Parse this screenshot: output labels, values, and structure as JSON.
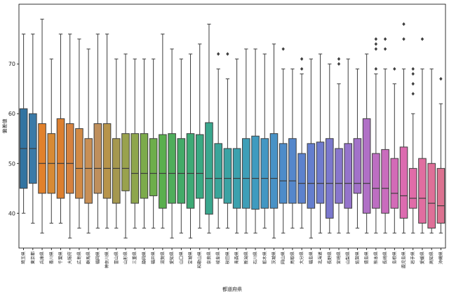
{
  "chart_data": {
    "type": "box",
    "xlabel": "都道府県",
    "ylabel": "偏差値",
    "ylim": [
      33,
      82
    ],
    "yticks": [
      40,
      50,
      60,
      70
    ],
    "categories": [
      "埼玉県",
      "東京都",
      "兵庫県",
      "香川県",
      "千葉県",
      "大阪府",
      "広島県",
      "群馬県",
      "福岡県",
      "神奈川県",
      "富山県",
      "山形県",
      "三重県",
      "静岡県",
      "福井県",
      "滋賀県",
      "愛知県",
      "山口県",
      "宮城県",
      "和歌山県",
      "奈良県",
      "岐阜県",
      "秋田県",
      "青森県",
      "新潟県",
      "石川県",
      "栃木県",
      "茨城県",
      "岡山県",
      "鳥取県",
      "大分県",
      "福島県",
      "北海道",
      "長野県",
      "宮崎県",
      "山梨県",
      "佐賀県",
      "徳島県",
      "熊本県",
      "長崎県",
      "島根県",
      "鹿児島県",
      "岩手県",
      "愛媛県",
      "高知県",
      "沖縄県"
    ],
    "colors": [
      "#3274a1",
      "#3a7aa8",
      "#e1812c",
      "#d78a35",
      "#dc7f2f",
      "#d6823f",
      "#d28a45",
      "#c88f55",
      "#bf8f5c",
      "#b7944b",
      "#a5984f",
      "#99a24d",
      "#8ea64c",
      "#7cab4b",
      "#6dae4b",
      "#5aaf4e",
      "#4fad5b",
      "#43aa68",
      "#3eaa75",
      "#3aa982",
      "#3aa78e",
      "#3aa59a",
      "#3ba3a4",
      "#3ca1ae",
      "#3e9fb8",
      "#409bbf",
      "#4397c3",
      "#4892c6",
      "#4e8cc9",
      "#5587cb",
      "#5c82cd",
      "#647ece",
      "#6f7bce",
      "#7b78cd",
      "#8876cc",
      "#9574cb",
      "#a272c9",
      "#b070c6",
      "#bd6ec2",
      "#c96cbd",
      "#d36bb7",
      "#dc6bb0",
      "#e06ca8",
      "#e06ea0",
      "#de7098",
      "#dc7290"
    ],
    "boxes": [
      {
        "whislo": 40,
        "q1": 45,
        "med": 53,
        "q3": 61,
        "whishi": 76,
        "fliers": []
      },
      {
        "whislo": 38,
        "q1": 46,
        "med": 53,
        "q3": 60,
        "whishi": 76,
        "fliers": []
      },
      {
        "whislo": 36,
        "q1": 44,
        "med": 50,
        "q3": 58,
        "whishi": 79,
        "fliers": []
      },
      {
        "whislo": 38,
        "q1": 44,
        "med": 50,
        "q3": 56,
        "whishi": 71,
        "fliers": []
      },
      {
        "whislo": 38,
        "q1": 43,
        "med": 50,
        "q3": 59,
        "whishi": 76,
        "fliers": []
      },
      {
        "whislo": 35,
        "q1": 44,
        "med": 50,
        "q3": 58,
        "whishi": 76,
        "fliers": []
      },
      {
        "whislo": 37,
        "q1": 43,
        "med": 49,
        "q3": 57,
        "whishi": 75,
        "fliers": []
      },
      {
        "whislo": 36,
        "q1": 42,
        "med": 49,
        "q3": 55,
        "whishi": 73,
        "fliers": []
      },
      {
        "whislo": 37,
        "q1": 44,
        "med": 49,
        "q3": 58,
        "whishi": 76,
        "fliers": []
      },
      {
        "whislo": 37,
        "q1": 43,
        "med": 49,
        "q3": 58,
        "whishi": 76,
        "fliers": []
      },
      {
        "whislo": 37,
        "q1": 42,
        "med": 49,
        "q3": 55,
        "whishi": 71,
        "fliers": []
      },
      {
        "whislo": 35,
        "q1": 44.5,
        "med": 49,
        "q3": 56,
        "whishi": 72,
        "fliers": []
      },
      {
        "whislo": 37,
        "q1": 42,
        "med": 48,
        "q3": 56,
        "whishi": 71,
        "fliers": []
      },
      {
        "whislo": 37,
        "q1": 43,
        "med": 48,
        "q3": 56,
        "whishi": 71,
        "fliers": []
      },
      {
        "whislo": 37,
        "q1": 43.5,
        "med": 48,
        "q3": 55,
        "whishi": 71,
        "fliers": []
      },
      {
        "whislo": 37,
        "q1": 41,
        "med": 48,
        "q3": 55.8,
        "whishi": 76,
        "fliers": []
      },
      {
        "whislo": 35,
        "q1": 42,
        "med": 48,
        "q3": 56,
        "whishi": 73,
        "fliers": []
      },
      {
        "whislo": 36,
        "q1": 42,
        "med": 48,
        "q3": 55,
        "whishi": 71,
        "fliers": []
      },
      {
        "whislo": 35,
        "q1": 41,
        "med": 48,
        "q3": 56,
        "whishi": 72,
        "fliers": []
      },
      {
        "whislo": 37,
        "q1": 43,
        "med": 48,
        "q3": 55.8,
        "whishi": 74,
        "fliers": []
      },
      {
        "whislo": 36,
        "q1": 39.8,
        "med": 47,
        "q3": 58.2,
        "whishi": 78,
        "fliers": []
      },
      {
        "whislo": 37,
        "q1": 43,
        "med": 47,
        "q3": 54,
        "whishi": 69,
        "fliers": [
          72
        ]
      },
      {
        "whislo": 37,
        "q1": 42,
        "med": 47,
        "q3": 53,
        "whishi": 67,
        "fliers": [
          72
        ]
      },
      {
        "whislo": 36,
        "q1": 41,
        "med": 47,
        "q3": 53,
        "whishi": 71,
        "fliers": []
      },
      {
        "whislo": 36,
        "q1": 41,
        "med": 47,
        "q3": 55,
        "whishi": 73,
        "fliers": []
      },
      {
        "whislo": 36,
        "q1": 40.8,
        "med": 47,
        "q3": 55.5,
        "whishi": 73,
        "fliers": []
      },
      {
        "whislo": 37,
        "q1": 41,
        "med": 47,
        "q3": 55,
        "whishi": 72,
        "fliers": []
      },
      {
        "whislo": 35,
        "q1": 41,
        "med": 47,
        "q3": 56,
        "whishi": 74,
        "fliers": []
      },
      {
        "whislo": 36,
        "q1": 42,
        "med": 46.5,
        "q3": 54,
        "whishi": 69,
        "fliers": [
          73
        ]
      },
      {
        "whislo": 37,
        "q1": 42,
        "med": 46.5,
        "q3": 55,
        "whishi": 69,
        "fliers": []
      },
      {
        "whislo": 37,
        "q1": 42,
        "med": 46,
        "q3": 52,
        "whishi": 68,
        "fliers": [
          69,
          71
        ]
      },
      {
        "whislo": 35,
        "q1": 41,
        "med": 46,
        "q3": 54,
        "whishi": 71,
        "fliers": []
      },
      {
        "whislo": 36,
        "q1": 42,
        "med": 46,
        "q3": 54.3,
        "whishi": 72,
        "fliers": []
      },
      {
        "whislo": 36,
        "q1": 39,
        "med": 46,
        "q3": 55,
        "whishi": 70,
        "fliers": []
      },
      {
        "whislo": 36,
        "q1": 42,
        "med": 46,
        "q3": 53,
        "whishi": 66,
        "fliers": [
          70,
          71
        ]
      },
      {
        "whislo": 36,
        "q1": 41,
        "med": 46,
        "q3": 54,
        "whishi": 71,
        "fliers": []
      },
      {
        "whislo": 37,
        "q1": 44,
        "med": 46,
        "q3": 55,
        "whishi": 69,
        "fliers": []
      },
      {
        "whislo": 36,
        "q1": 40,
        "med": 46,
        "q3": 59,
        "whishi": 72,
        "fliers": []
      },
      {
        "whislo": 36,
        "q1": 41,
        "med": 45,
        "q3": 52,
        "whishi": 68,
        "fliers": [
          69,
          73,
          74,
          75
        ]
      },
      {
        "whislo": 36,
        "q1": 40,
        "med": 45,
        "q3": 52.8,
        "whishi": 69,
        "fliers": [
          73,
          75
        ]
      },
      {
        "whislo": 36,
        "q1": 41,
        "med": 44,
        "q3": 51,
        "whishi": 66,
        "fliers": [
          69
        ]
      },
      {
        "whislo": 36,
        "q1": 39,
        "med": 43.5,
        "q3": 53.3,
        "whishi": 69,
        "fliers": [
          75,
          78
        ]
      },
      {
        "whislo": 36,
        "q1": 41,
        "med": 43,
        "q3": 49,
        "whishi": 60,
        "fliers": [
          64,
          66,
          68,
          69
        ]
      },
      {
        "whislo": 36,
        "q1": 38,
        "med": 43,
        "q3": 51,
        "whishi": 69,
        "fliers": [
          75
        ]
      },
      {
        "whislo": 36,
        "q1": 37,
        "med": 42,
        "q3": 50,
        "whishi": 69,
        "fliers": []
      },
      {
        "whislo": 36,
        "q1": 38,
        "med": 41.5,
        "q3": 49,
        "whishi": 62,
        "fliers": [
          67
        ]
      }
    ]
  }
}
